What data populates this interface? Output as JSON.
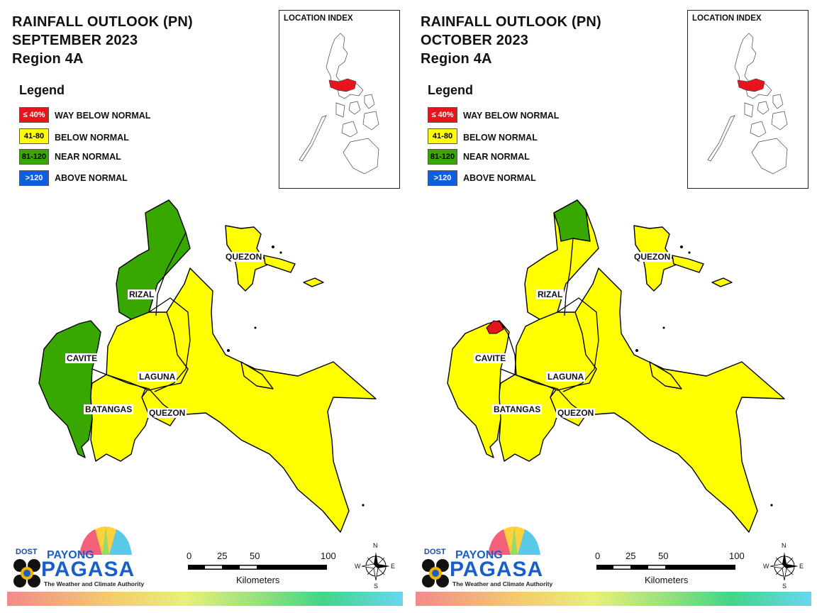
{
  "panels": [
    {
      "title": [
        "RAINFALL OUTLOOK (PN)",
        "SEPTEMBER 2023",
        "Region 4A"
      ],
      "legend": {
        "heading": "Legend",
        "items": [
          {
            "range": "≤ 40%",
            "label": "WAY BELOW NORMAL",
            "color": "#e8141b",
            "text_color": "#ffffff"
          },
          {
            "range": "41-80",
            "label": "BELOW NORMAL",
            "color": "#ffff00",
            "text_color": "#000000"
          },
          {
            "range": "81-120",
            "label": "NEAR NORMAL",
            "color": "#38a800",
            "text_color": "#000000"
          },
          {
            "range": ">120",
            "label": "ABOVE NORMAL",
            "color": "#0d5fe0",
            "text_color": "#ffffff"
          }
        ]
      },
      "location_index": {
        "title": "LOCATION INDEX",
        "highlight_color": "#e8141b"
      },
      "provinces": [
        {
          "name": "RIZAL",
          "category": "NEAR NORMAL"
        },
        {
          "name": "CAVITE",
          "category": "NEAR NORMAL"
        },
        {
          "name": "LAGUNA",
          "category": "BELOW NORMAL"
        },
        {
          "name": "BATANGAS",
          "category": "BELOW NORMAL"
        },
        {
          "name": "QUEZON",
          "category": "BELOW NORMAL"
        },
        {
          "name": "QUEZON",
          "category": "BELOW NORMAL"
        }
      ],
      "scale": {
        "ticks": [
          "0",
          "25",
          "50",
          "100"
        ],
        "unit": "Kilometers"
      },
      "compass": {
        "n": "N",
        "s": "S",
        "e": "E",
        "w": "W"
      },
      "brand": {
        "dost": "DOST",
        "payong": "PAYONG",
        "pagasa": "PAGASA",
        "tagline": "The Weather and Climate Authority"
      }
    },
    {
      "title": [
        "RAINFALL OUTLOOK (PN)",
        "OCTOBER 2023",
        "Region 4A"
      ],
      "legend": {
        "heading": "Legend",
        "items": [
          {
            "range": "≤ 40%",
            "label": "WAY BELOW NORMAL",
            "color": "#e8141b",
            "text_color": "#ffffff"
          },
          {
            "range": "41-80",
            "label": "BELOW NORMAL",
            "color": "#ffff00",
            "text_color": "#000000"
          },
          {
            "range": "81-120",
            "label": "NEAR NORMAL",
            "color": "#38a800",
            "text_color": "#000000"
          },
          {
            "range": ">120",
            "label": "ABOVE NORMAL",
            "color": "#0d5fe0",
            "text_color": "#ffffff"
          }
        ]
      },
      "location_index": {
        "title": "LOCATION INDEX",
        "highlight_color": "#e8141b"
      },
      "provinces": [
        {
          "name": "RIZAL",
          "category": "BELOW NORMAL"
        },
        {
          "name": "CAVITE",
          "category": "BELOW NORMAL"
        },
        {
          "name": "LAGUNA",
          "category": "BELOW NORMAL"
        },
        {
          "name": "BATANGAS",
          "category": "BELOW NORMAL"
        },
        {
          "name": "QUEZON",
          "category": "BELOW NORMAL"
        },
        {
          "name": "QUEZON",
          "category": "BELOW NORMAL"
        }
      ],
      "scale": {
        "ticks": [
          "0",
          "25",
          "50",
          "100"
        ],
        "unit": "Kilometers"
      },
      "compass": {
        "n": "N",
        "s": "S",
        "e": "E",
        "w": "W"
      },
      "brand": {
        "dost": "DOST",
        "payong": "PAYONG",
        "pagasa": "PAGASA",
        "tagline": "The Weather and Climate Authority"
      }
    }
  ],
  "colors": {
    "yellow": "#ffff00",
    "green": "#38a800",
    "red": "#e8141b"
  }
}
